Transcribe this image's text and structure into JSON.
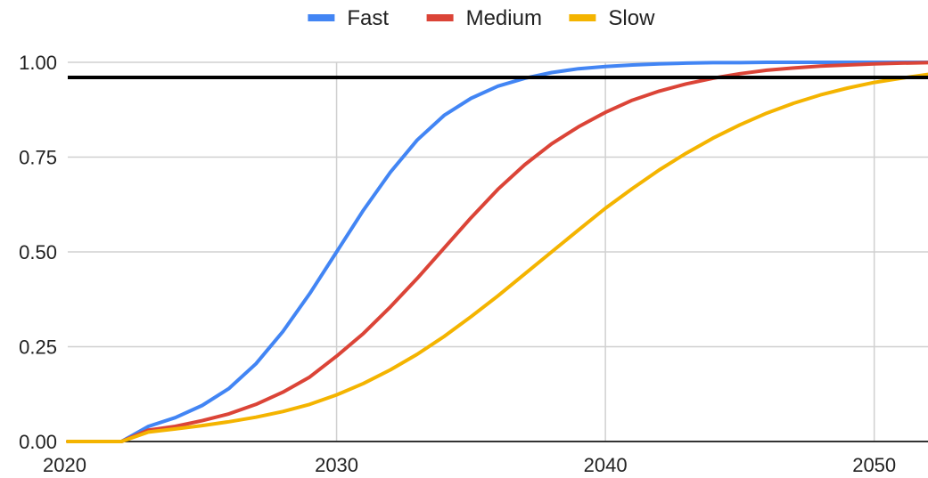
{
  "chart_data": {
    "type": "line",
    "title": "",
    "xlabel": "",
    "ylabel": "",
    "xlim": [
      2020,
      2052
    ],
    "ylim": [
      0,
      1
    ],
    "grid": true,
    "legend_position": "top",
    "x_ticks": [
      2020,
      2030,
      2040,
      2050
    ],
    "x_tick_labels": [
      "2020",
      "2030",
      "2040",
      "2050"
    ],
    "y_ticks": [
      0,
      0.25,
      0.5,
      0.75,
      1
    ],
    "y_tick_labels": [
      "0.00",
      "0.25",
      "0.50",
      "0.75",
      "1.00"
    ],
    "reference_line": {
      "y": 0.96,
      "color": "#000000"
    },
    "x": [
      2020,
      2021,
      2022,
      2023,
      2024,
      2025,
      2026,
      2027,
      2028,
      2029,
      2030,
      2031,
      2032,
      2033,
      2034,
      2035,
      2036,
      2037,
      2038,
      2039,
      2040,
      2041,
      2042,
      2043,
      2044,
      2045,
      2046,
      2047,
      2048,
      2049,
      2050,
      2051,
      2052
    ],
    "series": [
      {
        "name": "Fast",
        "color": "#4285F4",
        "values": [
          0,
          0,
          0,
          0.04,
          0.063,
          0.095,
          0.14,
          0.205,
          0.29,
          0.39,
          0.5,
          0.61,
          0.71,
          0.795,
          0.86,
          0.905,
          0.937,
          0.958,
          0.973,
          0.983,
          0.989,
          0.993,
          0.996,
          0.998,
          0.999,
          0.999,
          1,
          1,
          1,
          1,
          1,
          1,
          1
        ]
      },
      {
        "name": "Medium",
        "color": "#DB4437",
        "values": [
          0,
          0,
          0,
          0.03,
          0.04,
          0.055,
          0.073,
          0.098,
          0.13,
          0.17,
          0.225,
          0.285,
          0.355,
          0.43,
          0.51,
          0.59,
          0.665,
          0.73,
          0.785,
          0.83,
          0.868,
          0.9,
          0.924,
          0.943,
          0.958,
          0.97,
          0.979,
          0.985,
          0.99,
          0.993,
          0.996,
          0.998,
          0.999
        ]
      },
      {
        "name": "Slow",
        "color": "#F4B400",
        "values": [
          0,
          0,
          0,
          0.025,
          0.033,
          0.042,
          0.052,
          0.064,
          0.079,
          0.098,
          0.123,
          0.153,
          0.189,
          0.23,
          0.277,
          0.329,
          0.384,
          0.442,
          0.5,
          0.558,
          0.615,
          0.667,
          0.716,
          0.76,
          0.8,
          0.835,
          0.866,
          0.892,
          0.914,
          0.932,
          0.947,
          0.958,
          0.968
        ]
      }
    ]
  }
}
